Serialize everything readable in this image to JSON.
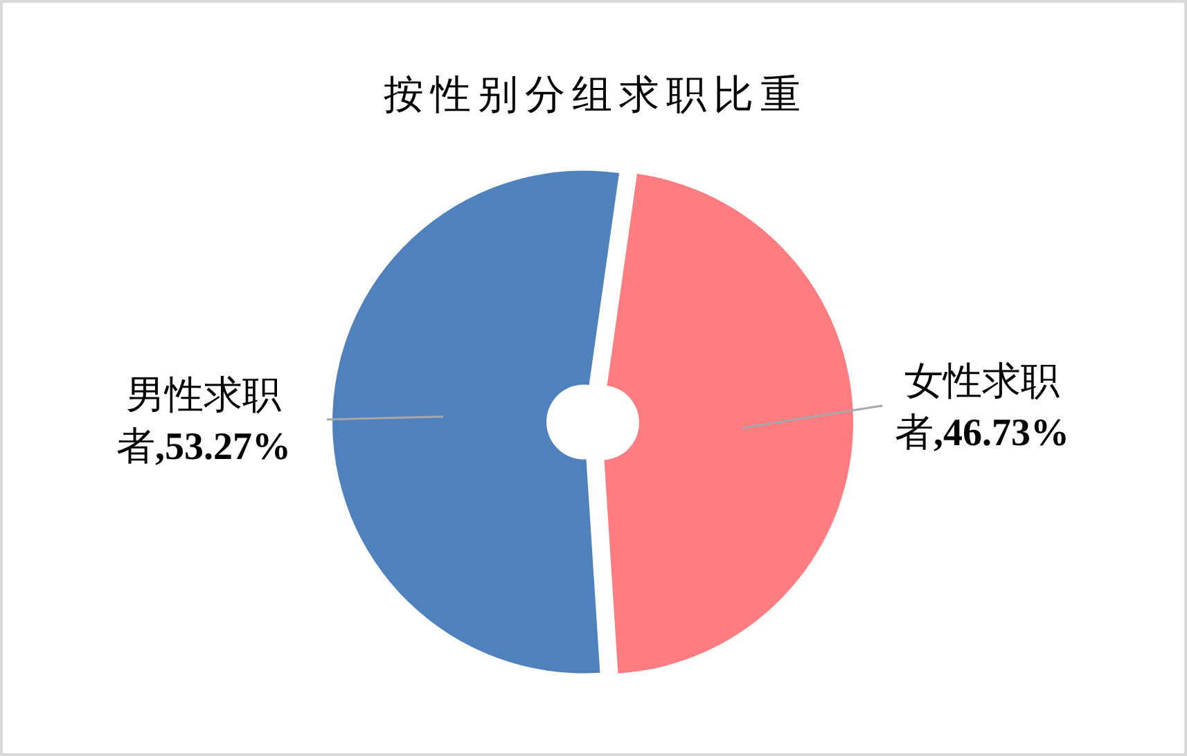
{
  "chart_data": {
    "type": "donut",
    "title": "按性别分组求职比重",
    "categories": [
      "男性求职者",
      "女性求职者"
    ],
    "values": [
      53.27,
      46.73
    ],
    "colors": [
      "#4f81bd",
      "#ff7c80"
    ],
    "value_labels": [
      ",53.27%",
      ",46.73%"
    ]
  }
}
